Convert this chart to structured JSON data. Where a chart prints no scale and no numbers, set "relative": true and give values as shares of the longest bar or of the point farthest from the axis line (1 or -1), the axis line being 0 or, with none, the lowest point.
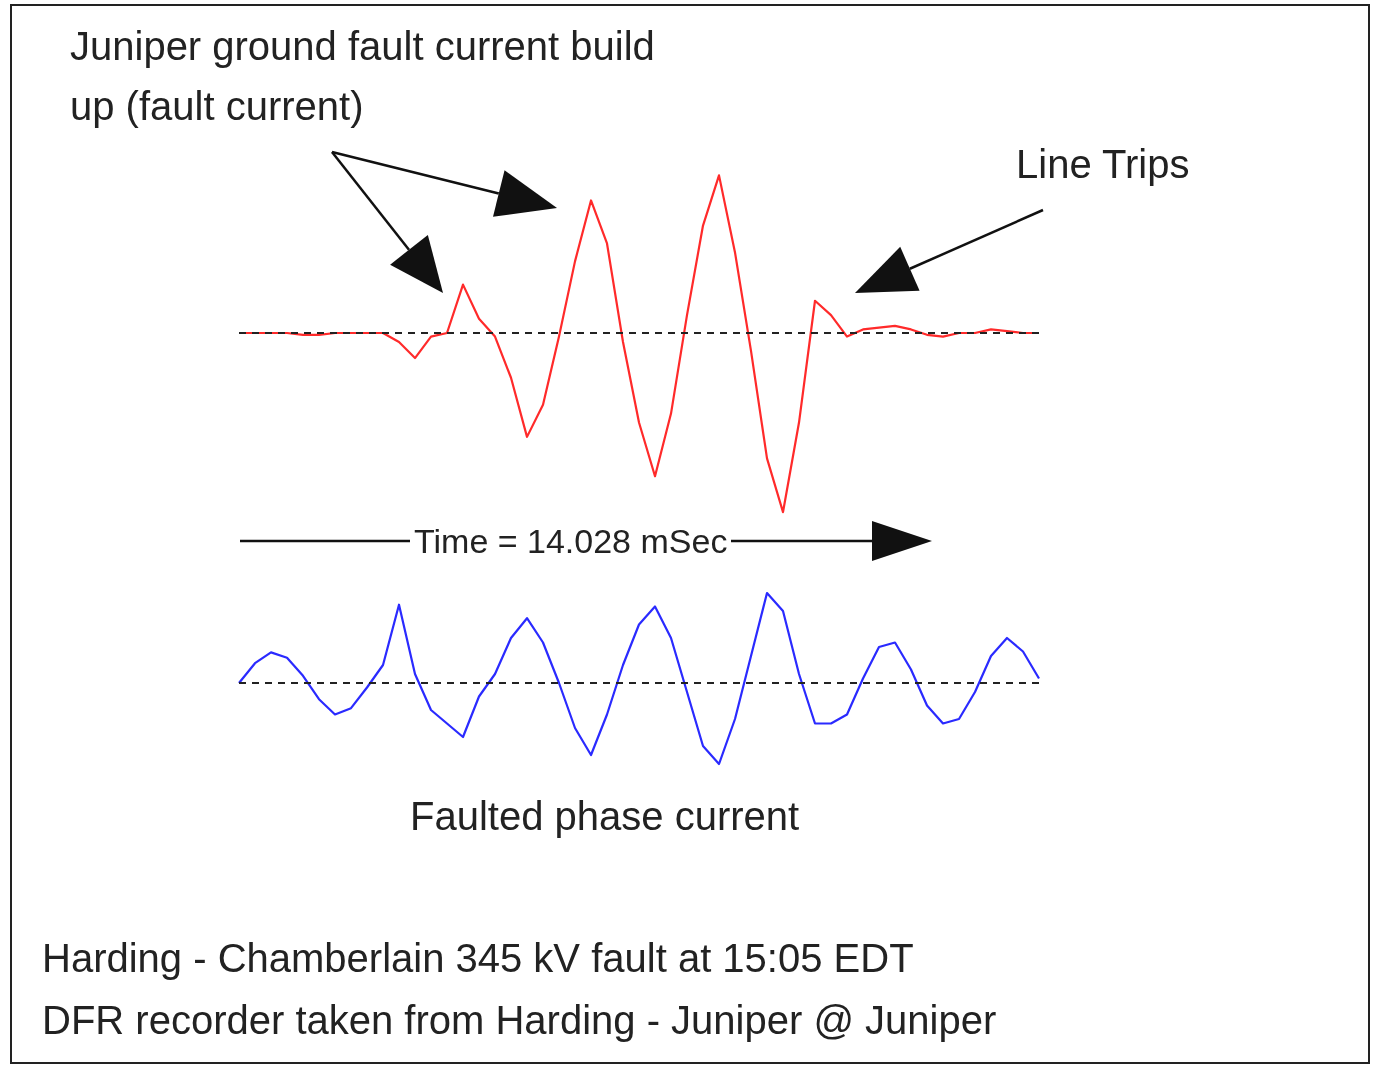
{
  "chart_data": [
    {
      "type": "line",
      "relative": true,
      "categories": [
        null,
        null,
        null,
        null,
        null,
        null,
        null,
        null,
        null,
        null,
        null,
        null,
        null,
        null,
        null,
        null,
        null,
        null,
        null,
        null,
        null,
        null,
        null,
        null,
        null,
        null,
        null,
        null,
        null,
        null,
        null,
        null,
        null,
        null,
        null,
        null,
        null,
        null,
        null,
        null,
        null,
        null,
        null,
        null,
        null,
        null,
        null,
        null,
        null,
        null,
        null
      ],
      "series": [
        {
          "color": "#ff2a2a",
          "values": [
            0,
            0,
            0,
            0,
            -0.01,
            -0.01,
            0,
            0,
            0,
            0,
            -0.05,
            -0.14,
            -0.02,
            0,
            0.27,
            0.08,
            -0.02,
            -0.25,
            -0.58,
            -0.4,
            -0.02,
            0.4,
            0.74,
            0.5,
            -0.05,
            -0.5,
            -0.8,
            -0.45,
            0.1,
            0.6,
            0.88,
            0.45,
            -0.1,
            -0.7,
            -1,
            -0.5,
            0.18,
            0.1,
            -0.02,
            0.02,
            0.03,
            0.04,
            0.02,
            -0.01,
            -0.02,
            0,
            0,
            0.02,
            0.01,
            0,
            0
          ]
        }
      ],
      "ref_lines": [
        {
          "axis": "y",
          "value": 0,
          "line_style": "dashed"
        }
      ],
      "annotations": [
        "Juniper ground fault current build up (fault current)",
        "Line Trips",
        "Time = 14.028 mSec"
      ]
    },
    {
      "type": "line",
      "relative": true,
      "categories": [
        null,
        null,
        null,
        null,
        null,
        null,
        null,
        null,
        null,
        null,
        null,
        null,
        null,
        null,
        null,
        null,
        null,
        null,
        null,
        null,
        null,
        null,
        null,
        null,
        null,
        null,
        null,
        null,
        null,
        null,
        null,
        null,
        null,
        null,
        null,
        null,
        null,
        null,
        null,
        null,
        null,
        null,
        null,
        null,
        null,
        null,
        null,
        null,
        null,
        null,
        null
      ],
      "series": [
        {
          "color": "#2a2aff",
          "values": [
            0,
            0.22,
            0.34,
            0.28,
            0.08,
            -0.18,
            -0.35,
            -0.28,
            -0.05,
            0.2,
            0.87,
            0.1,
            -0.3,
            -0.45,
            -0.6,
            -0.15,
            0.1,
            0.5,
            0.72,
            0.45,
            0,
            -0.5,
            -0.8,
            -0.35,
            0.2,
            0.65,
            0.85,
            0.5,
            -0.1,
            -0.7,
            -0.9,
            -0.4,
            0.3,
            1,
            0.8,
            0.1,
            -0.45,
            -0.45,
            -0.35,
            0.05,
            0.4,
            0.45,
            0.15,
            -0.25,
            -0.45,
            -0.4,
            -0.1,
            0.3,
            0.5,
            0.35,
            0.05
          ]
        }
      ],
      "ref_lines": [
        {
          "axis": "y",
          "value": 0,
          "line_style": "dashed"
        }
      ],
      "annotations": [
        "Faulted phase current",
        "Harding - Chamberlain 345 kV fault at 15:05 EDT",
        "DFR recorder taken from Harding - Juniper @ Juniper"
      ]
    }
  ]
}
